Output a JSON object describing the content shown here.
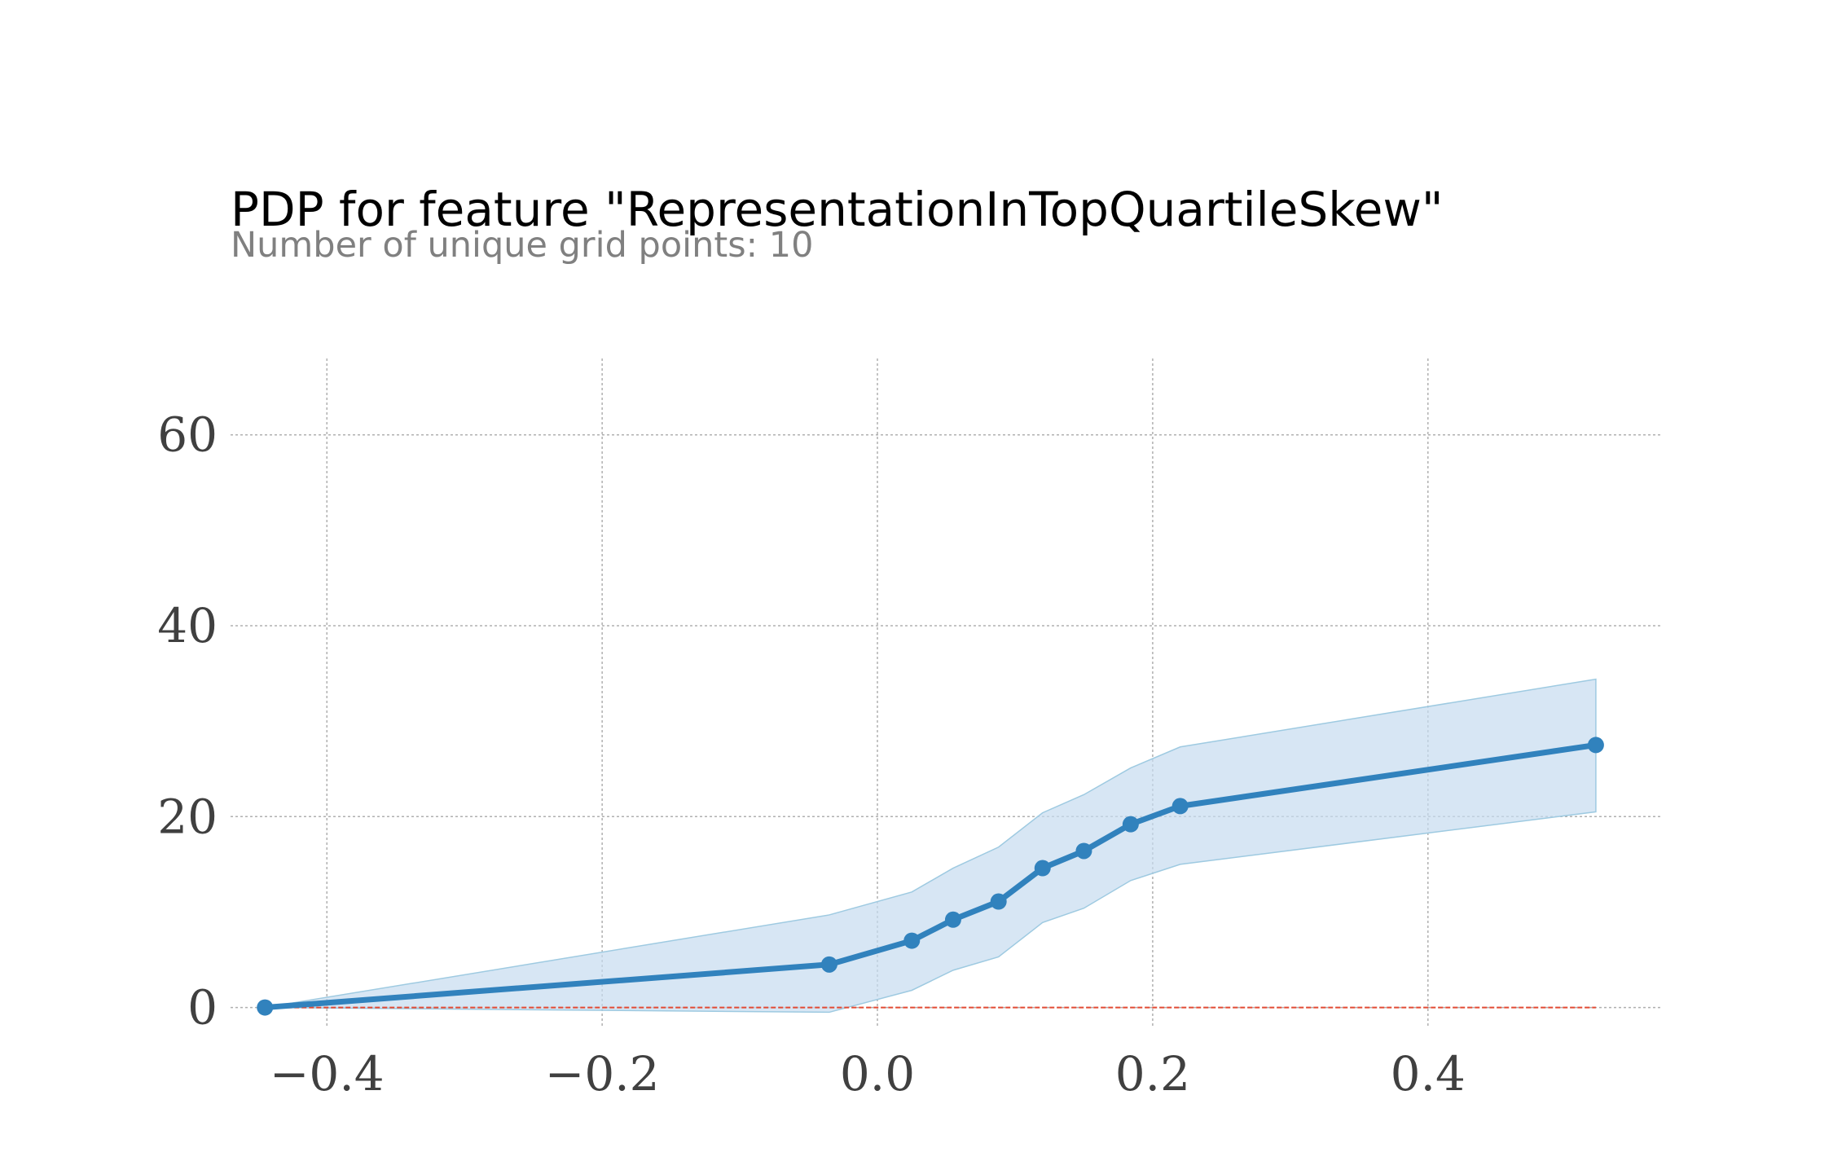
{
  "chart_data": {
    "type": "line",
    "title": "PDP for feature \"RepresentationInTopQuartileSkew\"",
    "subtitle": "Number of unique grid points: 10",
    "xlabel": "",
    "ylabel": "",
    "xlim": [
      -0.47,
      0.57
    ],
    "ylim": [
      -2,
      68
    ],
    "xticks": [
      -0.4,
      -0.2,
      0.0,
      0.2,
      0.4
    ],
    "yticks": [
      0,
      20,
      40,
      60
    ],
    "xtick_labels": [
      "−0.4",
      "−0.2",
      "0.0",
      "0.2",
      "0.4"
    ],
    "ytick_labels": [
      "0",
      "20",
      "40",
      "60"
    ],
    "grid": true,
    "legend": "none",
    "series": [
      {
        "x": [
          -0.445,
          -0.035,
          0.025,
          0.055,
          0.088,
          0.12,
          0.15,
          0.184,
          0.22,
          0.522
        ],
        "y": [
          0.0,
          4.5,
          7.0,
          9.2,
          11.1,
          14.6,
          16.4,
          19.2,
          21.1,
          27.5
        ],
        "lower": [
          0.0,
          -0.5,
          1.8,
          3.9,
          5.3,
          8.9,
          10.4,
          13.3,
          15.0,
          20.5
        ],
        "upper": [
          0.0,
          9.7,
          12.1,
          14.6,
          16.8,
          20.4,
          22.3,
          25.1,
          27.3,
          34.4
        ],
        "color": "#3182bd",
        "band_color": "#c6dbef"
      }
    ],
    "baseline": {
      "y": 0,
      "color": "#e34a33"
    }
  }
}
